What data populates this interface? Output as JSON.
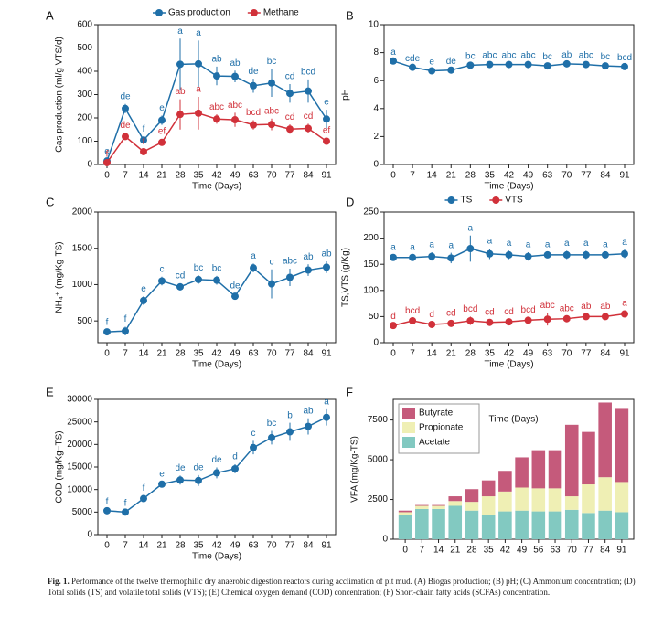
{
  "chart_data": [
    {
      "type": "line",
      "panel": "A",
      "ylabel": "Gas production (ml/g VTS/d)",
      "xlabel": "Time (Days)",
      "categories": [
        "0",
        "7",
        "14",
        "21",
        "28",
        "35",
        "42",
        "49",
        "63",
        "70",
        "77",
        "84",
        "91"
      ],
      "ylim": [
        0,
        600
      ],
      "yticks": [
        0,
        100,
        200,
        300,
        400,
        500,
        600
      ],
      "legend": "top",
      "series": [
        {
          "name": "Gas production",
          "color": "#1f6fa8",
          "values": [
            15,
            240,
            105,
            190,
            430,
            432,
            380,
            378,
            338,
            350,
            305,
            315,
            195
          ],
          "errors": [
            10,
            20,
            15,
            20,
            110,
            100,
            40,
            25,
            30,
            60,
            40,
            50,
            40
          ],
          "labels": [
            "e",
            "de",
            "f",
            "e",
            "a",
            "a",
            "ab",
            "ab",
            "de",
            "bc",
            "cd",
            "bcd",
            "e"
          ]
        },
        {
          "name": "Methane",
          "color": "#d1313a",
          "values": [
            8,
            120,
            55,
            95,
            215,
            220,
            195,
            192,
            170,
            172,
            152,
            155,
            100
          ],
          "errors": [
            5,
            15,
            10,
            15,
            65,
            70,
            20,
            30,
            20,
            25,
            20,
            20,
            15
          ],
          "labels": [
            "f",
            "de",
            "f",
            "ef",
            "ab",
            "a",
            "abc",
            "abc",
            "bcd",
            "abc",
            "cd",
            "cd",
            "ef"
          ]
        }
      ]
    },
    {
      "type": "line",
      "panel": "B",
      "ylabel": "pH",
      "xlabel": "Time (Days)",
      "categories": [
        "0",
        "7",
        "14",
        "21",
        "28",
        "35",
        "42",
        "49",
        "63",
        "70",
        "77",
        "84",
        "91"
      ],
      "ylim": [
        0,
        10
      ],
      "yticks": [
        0,
        2,
        4,
        6,
        8,
        10
      ],
      "series": [
        {
          "color": "#1f6fa8",
          "values": [
            7.4,
            6.95,
            6.7,
            6.75,
            7.1,
            7.15,
            7.15,
            7.15,
            7.05,
            7.2,
            7.15,
            7.05,
            7.0
          ],
          "errors": [
            0.1,
            0.1,
            0.1,
            0.1,
            0.1,
            0.1,
            0.1,
            0.1,
            0.1,
            0.1,
            0.1,
            0.1,
            0.1
          ],
          "labels": [
            "a",
            "cde",
            "e",
            "de",
            "bc",
            "abc",
            "abc",
            "abc",
            "bc",
            "ab",
            "abc",
            "bc",
            "bcd"
          ]
        }
      ]
    },
    {
      "type": "line",
      "panel": "C",
      "ylabel": "NH₄⁺ (mg/Kg-TS)",
      "xlabel": "Time (Days)",
      "categories": [
        "0",
        "7",
        "14",
        "21",
        "28",
        "35",
        "42",
        "49",
        "63",
        "70",
        "77",
        "84",
        "91"
      ],
      "ylim": [
        200,
        2000
      ],
      "yticks": [
        500,
        1000,
        1500,
        2000
      ],
      "series": [
        {
          "color": "#1f6fa8",
          "values": [
            350,
            360,
            780,
            1050,
            970,
            1070,
            1060,
            840,
            1230,
            1010,
            1100,
            1200,
            1240
          ],
          "errors": [
            30,
            60,
            60,
            60,
            50,
            60,
            60,
            40,
            60,
            200,
            120,
            80,
            80
          ],
          "labels": [
            "f",
            "f",
            "e",
            "c",
            "cd",
            "bc",
            "bc",
            "de",
            "a",
            "c",
            "abc",
            "ab",
            "ab"
          ]
        }
      ]
    },
    {
      "type": "line",
      "panel": "D",
      "ylabel": "TS,VTS (g/Kg)",
      "xlabel": "Time (Days)",
      "categories": [
        "0",
        "7",
        "14",
        "21",
        "28",
        "35",
        "42",
        "49",
        "63",
        "70",
        "77",
        "84",
        "91"
      ],
      "ylim": [
        0,
        250
      ],
      "yticks": [
        0,
        50,
        100,
        150,
        200,
        250
      ],
      "legend": "top",
      "series": [
        {
          "name": "TS",
          "color": "#1f6fa8",
          "values": [
            163,
            163,
            165,
            162,
            180,
            170,
            168,
            165,
            168,
            168,
            168,
            168,
            170
          ],
          "errors": [
            5,
            5,
            8,
            10,
            25,
            10,
            8,
            8,
            5,
            8,
            8,
            5,
            8
          ],
          "labels": [
            "a",
            "a",
            "a",
            "a",
            "a",
            "a",
            "a",
            "a",
            "a",
            "a",
            "a",
            "a",
            "a"
          ]
        },
        {
          "name": "VTS",
          "color": "#d1313a",
          "values": [
            33,
            42,
            35,
            37,
            42,
            39,
            40,
            43,
            45,
            46,
            50,
            50,
            55
          ],
          "errors": [
            3,
            5,
            5,
            5,
            8,
            5,
            5,
            5,
            12,
            5,
            5,
            5,
            6
          ],
          "labels": [
            "d",
            "bcd",
            "d",
            "cd",
            "bcd",
            "cd",
            "cd",
            "bcd",
            "abc",
            "abc",
            "ab",
            "ab",
            "a"
          ]
        }
      ]
    },
    {
      "type": "line",
      "panel": "E",
      "ylabel": "COD (mg/Kg−TS)",
      "xlabel": "Time (Days)",
      "categories": [
        "0",
        "7",
        "14",
        "21",
        "28",
        "35",
        "42",
        "49",
        "63",
        "70",
        "77",
        "84",
        "91"
      ],
      "ylim": [
        0,
        30000
      ],
      "yticks": [
        0,
        5000,
        10000,
        15000,
        20000,
        25000,
        30000
      ],
      "series": [
        {
          "color": "#1f6fa8",
          "values": [
            5300,
            5000,
            8000,
            11200,
            12100,
            12000,
            13700,
            14600,
            19300,
            21500,
            22800,
            24000,
            26000
          ],
          "errors": [
            300,
            300,
            600,
            600,
            1000,
            1200,
            1200,
            1000,
            1500,
            1500,
            2000,
            1800,
            1800
          ],
          "labels": [
            "f",
            "f",
            "f",
            "e",
            "de",
            "de",
            "de",
            "d",
            "c",
            "bc",
            "b",
            "ab",
            "a"
          ]
        }
      ]
    },
    {
      "type": "bar",
      "panel": "F",
      "ylabel": "VFA (mg/Kg-TS)",
      "xlabel": "Time (Days)",
      "categories": [
        "0",
        "7",
        "14",
        "21",
        "28",
        "35",
        "42",
        "49",
        "56",
        "63",
        "70",
        "77",
        "84",
        "91"
      ],
      "ylim": [
        0,
        8800
      ],
      "yticks": [
        0,
        2500,
        5000,
        7500
      ],
      "legend": "upper left",
      "series": [
        {
          "name": "Acetate",
          "color": "#82c9c1",
          "values": [
            1550,
            1900,
            1900,
            2100,
            1800,
            1550,
            1750,
            1800,
            1750,
            1750,
            1850,
            1650,
            1800,
            1700
          ]
        },
        {
          "name": "Propionate",
          "color": "#efefb4",
          "values": [
            150,
            200,
            200,
            300,
            550,
            1150,
            1250,
            1450,
            1450,
            1450,
            850,
            1800,
            2100,
            1900
          ]
        },
        {
          "name": "Butyrate",
          "color": "#c55a7b",
          "values": [
            100,
            50,
            50,
            300,
            800,
            1000,
            1300,
            1900,
            2400,
            2400,
            4500,
            3300,
            4700,
            4600
          ]
        }
      ]
    }
  ],
  "caption": {
    "label": "Fig. 1.",
    "text": "Performance of the twelve thermophilic dry anaerobic digestion reactors during acclimation of pit mud. (A) Biogas production; (B) pH; (C) Ammonium concentration; (D) Total solids (TS) and volatile total solids (VTS); (E) Chemical oxygen demand (COD) concentration; (F) Short-chain fatty acids (SCFAs) concentration."
  }
}
